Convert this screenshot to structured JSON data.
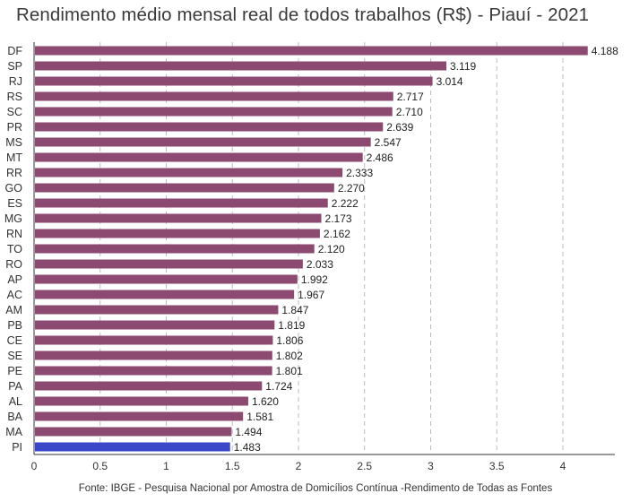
{
  "title": "Rendimento médio mensal real de todos trabalhos (R$) - Piauí - 2021",
  "source": "Fonte: IBGE - Pesquisa Nacional por Amostra de Domicílios Contínua -Rendimento de Todas as Fontes",
  "colors": {
    "bar": "#8c4a70",
    "highlight": "#3a48c8",
    "grid": "#bbbbbb"
  },
  "chart_data": {
    "type": "bar",
    "orientation": "horizontal",
    "title": "Rendimento médio mensal real de todos trabalhos (R$) - Piauí - 2021",
    "xlabel": "",
    "ylabel": "",
    "xlim": [
      0,
      4.4
    ],
    "xticks": [
      0,
      0.5,
      1,
      1.5,
      2,
      2.5,
      3,
      3.5,
      4
    ],
    "xtick_labels": [
      "0",
      "0.5",
      "1",
      "1.5",
      "2",
      "2.5",
      "3",
      "3.5",
      "4"
    ],
    "grid": "vertical dashed",
    "highlight_category": "PI",
    "categories": [
      "DF",
      "SP",
      "RJ",
      "RS",
      "SC",
      "PR",
      "MS",
      "MT",
      "RR",
      "GO",
      "ES",
      "MG",
      "RN",
      "TO",
      "RO",
      "AP",
      "AC",
      "AM",
      "PB",
      "CE",
      "SE",
      "PE",
      "PA",
      "AL",
      "BA",
      "MA",
      "PI"
    ],
    "values": [
      4.188,
      3.119,
      3.014,
      2.717,
      2.71,
      2.639,
      2.547,
      2.486,
      2.333,
      2.27,
      2.222,
      2.173,
      2.162,
      2.12,
      2.033,
      1.992,
      1.967,
      1.847,
      1.819,
      1.806,
      1.802,
      1.801,
      1.724,
      1.62,
      1.581,
      1.494,
      1.483
    ],
    "value_labels": [
      "4.188",
      "3.119",
      "3.014",
      "2.717",
      "2.710",
      "2.639",
      "2.547",
      "2.486",
      "2.333",
      "2.270",
      "2.222",
      "2.173",
      "2.162",
      "2.120",
      "2.033",
      "1.992",
      "1.967",
      "1.847",
      "1.819",
      "1.806",
      "1.802",
      "1.801",
      "1.724",
      "1.620",
      "1.581",
      "1.494",
      "1.483"
    ]
  }
}
